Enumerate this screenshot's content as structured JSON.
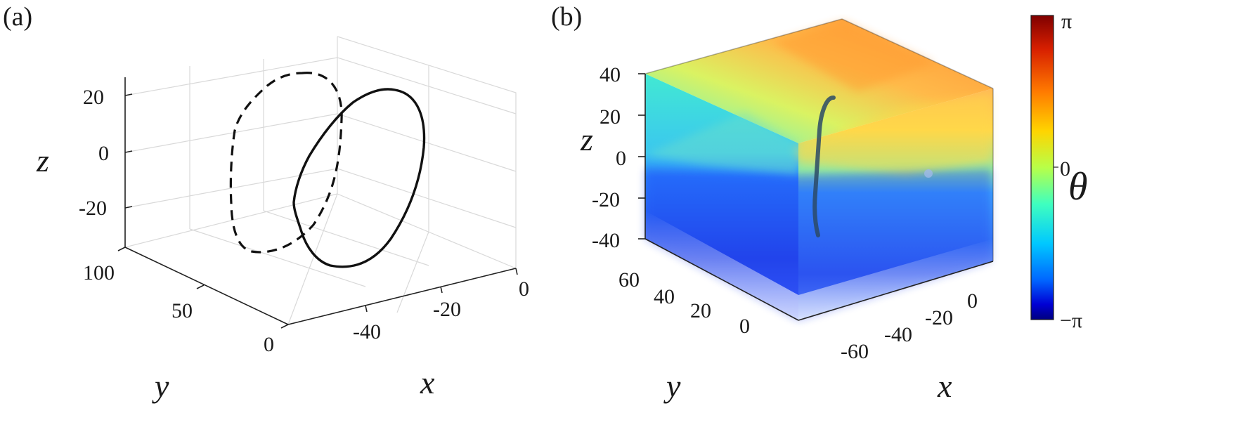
{
  "panels": {
    "a": {
      "label": "(a)",
      "zticks": [
        "20",
        "0",
        "-20"
      ],
      "yticks": [
        "100",
        "50",
        "0"
      ],
      "xticks": [
        "-40",
        "-20",
        "0"
      ],
      "zlabel": "z",
      "ylabel": "y",
      "xlabel": "x"
    },
    "b": {
      "label": "(b)",
      "zticks": [
        "40",
        "20",
        "0",
        "-20",
        "-40"
      ],
      "yticks": [
        "60",
        "40",
        "20",
        "0"
      ],
      "xticks": [
        "-60",
        "-40",
        "-20",
        "0"
      ],
      "zlabel": "z",
      "ylabel": "y",
      "xlabel": "x"
    }
  },
  "colorbar": {
    "top_label": "π",
    "mid_label": "0",
    "bottom_label": "−π",
    "title": "θ",
    "colors": [
      "#7f0000",
      "#d71f00",
      "#ff7a00",
      "#ffd400",
      "#b8ff48",
      "#3fffbf",
      "#00c8ff",
      "#0066ff",
      "#0000d4",
      "#00007f"
    ]
  },
  "chart_data": [
    {
      "type": "line",
      "panel": "a",
      "projection": "3d",
      "series": [
        {
          "style": "solid",
          "x": [
            -8,
            -2,
            2,
            0,
            -6,
            -14,
            -22,
            -30,
            -34,
            -36,
            -37,
            -36,
            -33,
            -28,
            -22,
            -16,
            -10,
            -8
          ],
          "y": [
            50,
            50,
            50,
            50,
            50,
            50,
            50,
            50,
            50,
            50,
            50,
            50,
            50,
            50,
            50,
            50,
            50,
            50
          ],
          "z": [
            30,
            22,
            5,
            -10,
            -24,
            -34,
            -38,
            -36,
            -30,
            -22,
            -10,
            2,
            14,
            22,
            27,
            30,
            31,
            30
          ]
        },
        {
          "style": "dashed",
          "x": [
            -20,
            -14,
            -10,
            -12,
            -18,
            -26,
            -34,
            -40,
            -44,
            -46,
            -44,
            -38,
            -30,
            -24,
            -20
          ],
          "y": [
            100,
            100,
            100,
            100,
            100,
            100,
            100,
            100,
            100,
            100,
            100,
            100,
            100,
            100,
            100
          ],
          "z": [
            34,
            26,
            10,
            -6,
            -20,
            -30,
            -34,
            -30,
            -18,
            -4,
            10,
            20,
            28,
            33,
            34
          ]
        }
      ],
      "zlim": [
        -30,
        30
      ],
      "ylim": [
        0,
        100
      ],
      "xlim": [
        -50,
        0
      ],
      "grid": true
    },
    {
      "type": "heatmap",
      "panel": "b",
      "projection": "3d volume",
      "variable": "θ",
      "clim": [
        "−π",
        "π"
      ],
      "zlim": [
        -40,
        40
      ],
      "ylim": [
        0,
        70
      ],
      "xlim": [
        -70,
        10
      ],
      "trajectory": {
        "x": [
          -30,
          -30,
          -30,
          -30,
          -30,
          -30
        ],
        "y": [
          35,
          35,
          35,
          35,
          35,
          35
        ],
        "z": [
          34,
          20,
          0,
          -20,
          -32,
          -38
        ]
      }
    }
  ]
}
